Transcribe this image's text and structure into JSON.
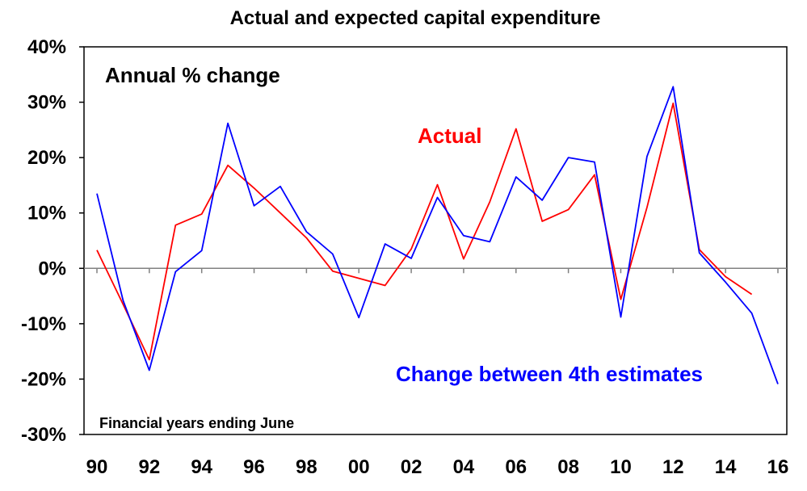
{
  "chart_data": {
    "type": "line",
    "title": "Actual and expected capital expenditure",
    "xlabel": "",
    "ylabel": "",
    "ylim": [
      -30,
      40
    ],
    "xlim": [
      1990,
      2016
    ],
    "y_ticks": [
      "40%",
      "30%",
      "20%",
      "10%",
      "0%",
      "-10%",
      "-20%",
      "-30%"
    ],
    "x_ticks": [
      "90",
      "92",
      "94",
      "96",
      "98",
      "00",
      "02",
      "04",
      "06",
      "08",
      "10",
      "12",
      "14",
      "16"
    ],
    "annotations": {
      "units": "Annual % change",
      "footnote": "Financial years ending June"
    },
    "grid": false,
    "series": [
      {
        "name": "Actual",
        "color": "#ff0000",
        "x": [
          1990,
          1991,
          1992,
          1993,
          1994,
          1995,
          1996,
          1997,
          1998,
          1999,
          2000,
          2001,
          2002,
          2003,
          2004,
          2005,
          2006,
          2007,
          2008,
          2009,
          2010,
          2011,
          2012,
          2013,
          2014,
          2015
        ],
        "values": [
          3.3,
          -6.5,
          -16.5,
          7.8,
          9.8,
          18.6,
          14.5,
          10.0,
          5.5,
          -0.5,
          -1.8,
          -3.1,
          3.5,
          15.1,
          1.7,
          12.0,
          25.2,
          8.5,
          10.6,
          16.9,
          -5.6,
          11.0,
          29.8,
          3.4,
          -1.5,
          -4.7
        ]
      },
      {
        "name": "Change between 4th estimates",
        "color": "#0000ff",
        "x": [
          1990,
          1991,
          1992,
          1993,
          1994,
          1995,
          1996,
          1997,
          1998,
          1999,
          2000,
          2001,
          2002,
          2003,
          2004,
          2005,
          2006,
          2007,
          2008,
          2009,
          2010,
          2011,
          2012,
          2013,
          2014,
          2015,
          2016
        ],
        "values": [
          13.5,
          -5.8,
          -18.4,
          -0.6,
          3.2,
          26.2,
          11.3,
          14.8,
          6.6,
          2.6,
          -8.9,
          4.4,
          1.8,
          12.8,
          5.9,
          4.8,
          16.5,
          12.3,
          20.0,
          19.2,
          -8.8,
          20.2,
          32.8,
          2.8,
          -2.5,
          -8.1,
          -20.9
        ]
      }
    ]
  },
  "colors": {
    "axis": "#808080",
    "frame": "#000000"
  }
}
